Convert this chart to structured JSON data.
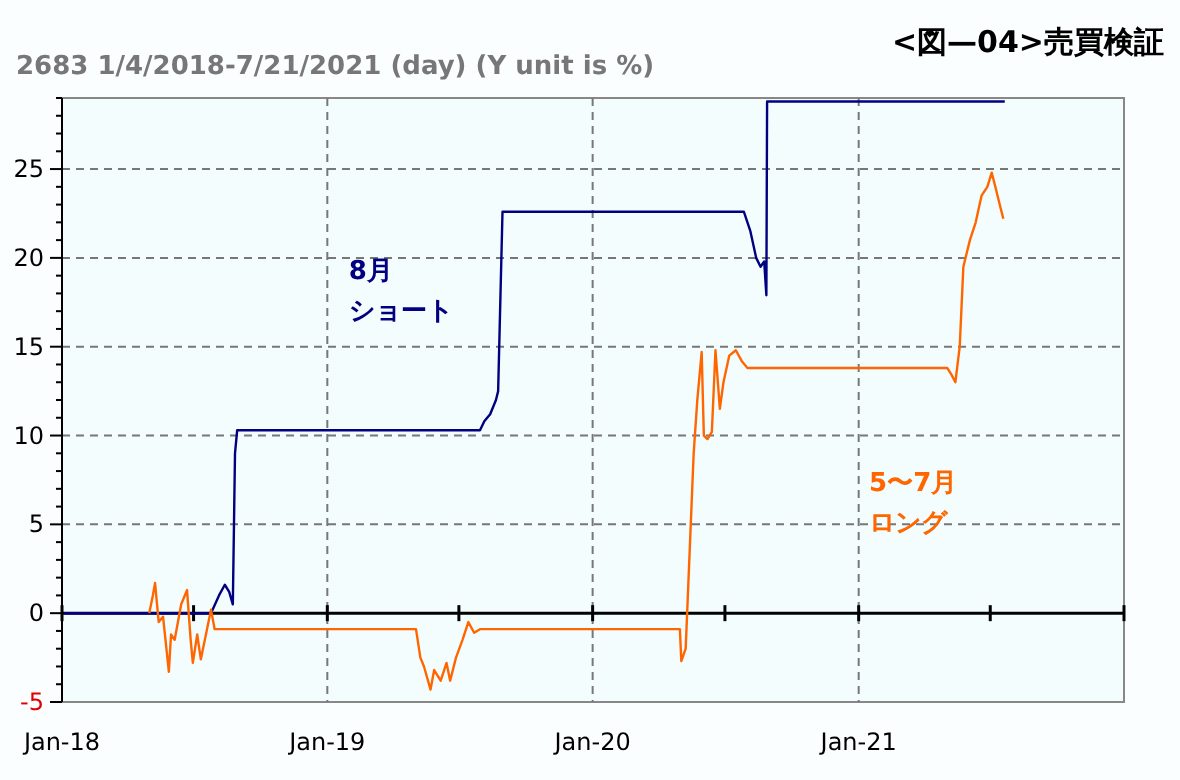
{
  "chart_data": {
    "type": "line",
    "title": "<図—04>売買検証",
    "subtitle": "2683 1/4/2018-7/21/2021 (day)  (Y unit is %)",
    "xlim": [
      "2018-01-01",
      "2022-01-01"
    ],
    "xticks": [
      {
        "value": "2018-01-01",
        "label": "Jan-18"
      },
      {
        "value": "2018-07-01",
        "label": null
      },
      {
        "value": "2019-01-01",
        "label": "Jan-19"
      },
      {
        "value": "2019-07-01",
        "label": null
      },
      {
        "value": "2020-01-01",
        "label": "Jan-20"
      },
      {
        "value": "2020-07-01",
        "label": null
      },
      {
        "value": "2021-01-01",
        "label": "Jan-21"
      },
      {
        "value": "2021-07-01",
        "label": null
      },
      {
        "value": "2022-01-01",
        "label": null
      }
    ],
    "ylim": [
      -5,
      29
    ],
    "yticks": [
      -5,
      {
        "value": -4,
        "label": null
      },
      {
        "value": -3,
        "label": null
      },
      {
        "value": -2,
        "label": null
      },
      {
        "value": -1,
        "label": null
      },
      0,
      {
        "value": 1,
        "label": null
      },
      {
        "value": 2,
        "label": null
      },
      {
        "value": 3,
        "label": null
      },
      {
        "value": 4,
        "label": null
      },
      5,
      {
        "value": 6,
        "label": null
      },
      {
        "value": 7,
        "label": null
      },
      {
        "value": 8,
        "label": null
      },
      {
        "value": 9,
        "label": null
      },
      10,
      {
        "value": 11,
        "label": null
      },
      {
        "value": 12,
        "label": null
      },
      {
        "value": 13,
        "label": null
      },
      {
        "value": 14,
        "label": null
      },
      15,
      {
        "value": 16,
        "label": null
      },
      {
        "value": 17,
        "label": null
      },
      {
        "value": 18,
        "label": null
      },
      {
        "value": 19,
        "label": null
      },
      20,
      {
        "value": 21,
        "label": null
      },
      {
        "value": 22,
        "label": null
      },
      {
        "value": 23,
        "label": null
      },
      {
        "value": 24,
        "label": null
      },
      25,
      {
        "value": 26,
        "label": null
      },
      {
        "value": 27,
        "label": null
      },
      {
        "value": 28,
        "label": null
      },
      {
        "value": 29,
        "label": null
      }
    ],
    "grid": true,
    "marker": "none",
    "line_style": "solid",
    "series": [
      {
        "name": "8月ショート",
        "color": "#000080",
        "x": [
          "2018-01-04",
          "2018-07-25",
          "2018-08-05",
          "2018-08-13",
          "2018-08-19",
          "2018-08-24",
          "2018-08-27",
          "2018-08-30",
          "2019-07-30",
          "2019-08-05",
          "2019-08-13",
          "2019-08-21",
          "2019-08-24",
          "2019-08-30",
          "2020-07-27",
          "2020-08-05",
          "2020-08-13",
          "2020-08-19",
          "2020-08-24",
          "2020-08-27",
          "2020-08-28",
          "2021-07-21"
        ],
        "values": [
          0,
          0,
          1.0,
          1.6,
          1.2,
          0.5,
          9.0,
          10.3,
          10.3,
          10.8,
          11.2,
          12.0,
          12.5,
          22.6,
          22.6,
          21.5,
          20.0,
          19.5,
          19.8,
          17.9,
          28.8,
          28.8
        ]
      },
      {
        "name": "5〜7月ロング",
        "color": "#ff6600",
        "x": [
          "2018-05-01",
          "2018-05-06",
          "2018-05-09",
          "2018-05-14",
          "2018-05-20",
          "2018-05-28",
          "2018-05-31",
          "2018-06-05",
          "2018-06-14",
          "2018-06-22",
          "2018-06-27",
          "2018-06-30",
          "2018-07-06",
          "2018-07-11",
          "2018-07-19",
          "2018-07-25",
          "2018-07-30",
          "2019-05-03",
          "2019-05-09",
          "2019-05-14",
          "2019-05-23",
          "2019-05-28",
          "2019-06-06",
          "2019-06-14",
          "2019-06-19",
          "2019-06-27",
          "2019-07-06",
          "2019-07-14",
          "2019-07-22",
          "2019-07-30",
          "2020-04-30",
          "2020-05-02",
          "2020-05-08",
          "2020-05-13",
          "2020-05-19",
          "2020-05-24",
          "2020-05-30",
          "2020-06-02",
          "2020-06-07",
          "2020-06-13",
          "2020-06-18",
          "2020-06-24",
          "2020-06-29",
          "2020-07-07",
          "2020-07-16",
          "2020-07-24",
          "2020-08-01",
          "2021-05-03",
          "2021-05-09",
          "2021-05-14",
          "2021-05-20",
          "2021-05-25",
          "2021-06-03",
          "2021-06-11",
          "2021-06-19",
          "2021-06-27",
          "2021-07-03",
          "2021-07-08",
          "2021-07-14",
          "2021-07-19"
        ],
        "values": [
          0,
          1.0,
          1.7,
          -0.5,
          -0.2,
          -3.3,
          -1.2,
          -1.5,
          0.5,
          1.3,
          -1.5,
          -2.8,
          -1.2,
          -2.6,
          -1.0,
          0.2,
          -0.9,
          -0.9,
          -2.5,
          -3.0,
          -4.3,
          -3.2,
          -3.8,
          -2.8,
          -3.8,
          -2.5,
          -1.5,
          -0.5,
          -1.1,
          -0.9,
          -0.9,
          -2.7,
          -2.0,
          3.0,
          9.0,
          12.0,
          14.7,
          10.0,
          9.8,
          10.2,
          14.8,
          11.5,
          13.0,
          14.5,
          14.8,
          14.2,
          13.8,
          13.8,
          13.4,
          13.0,
          15.0,
          19.5,
          21.0,
          22.0,
          23.5,
          24.0,
          24.8,
          24.0,
          23.0,
          22.2
        ]
      }
    ]
  }
}
